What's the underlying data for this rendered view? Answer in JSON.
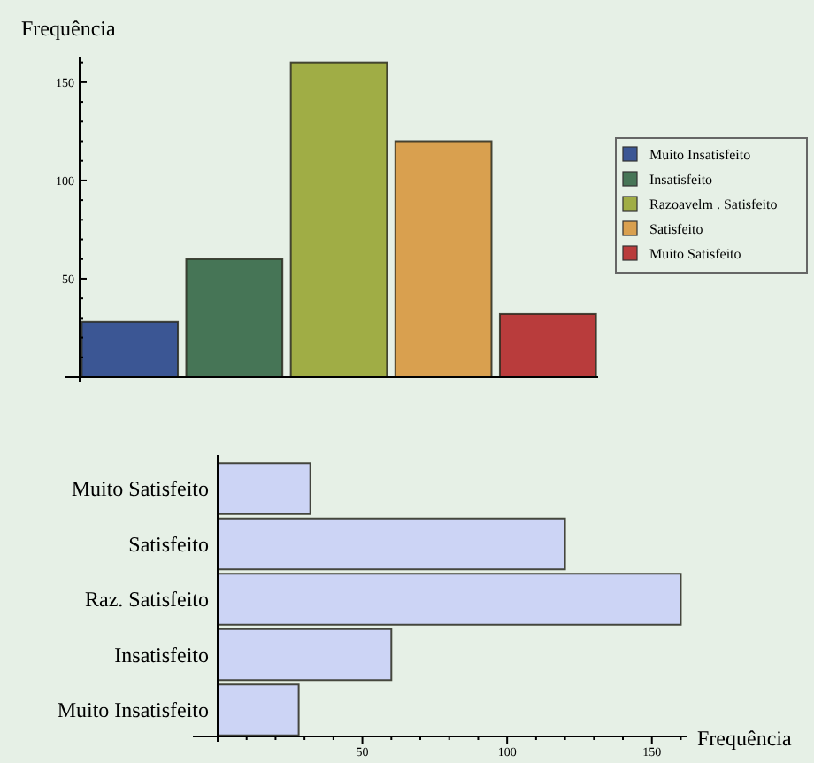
{
  "chart_data": [
    {
      "type": "bar",
      "ylabel": "Frequência",
      "categories": [
        null,
        null,
        null,
        null,
        null
      ],
      "series": [
        {
          "name": "Muito Insatisfeito",
          "color": "#3b5694",
          "values": [
            28,
            null,
            null,
            null,
            null
          ]
        },
        {
          "name": "Insatisfeito",
          "color": "#467556",
          "values": [
            null,
            60,
            null,
            null,
            null
          ]
        },
        {
          "name": "Razoavelm . Satisfeito",
          "color": "#a0ad45",
          "values": [
            null,
            null,
            160,
            null,
            null
          ]
        },
        {
          "name": "Satisfeito",
          "color": "#d9a04f",
          "values": [
            null,
            null,
            null,
            120,
            null
          ]
        },
        {
          "name": "Muito Satisfeito",
          "color": "#b93c3c",
          "values": [
            null,
            null,
            null,
            null,
            32
          ]
        }
      ],
      "ylim": [
        0,
        163
      ],
      "yticks": [
        {
          "value": 10,
          "label": null
        },
        {
          "value": 20,
          "label": null
        },
        {
          "value": 30,
          "label": null
        },
        {
          "value": 40,
          "label": null
        },
        50,
        {
          "value": 60,
          "label": null
        },
        {
          "value": 70,
          "label": null
        },
        {
          "value": 80,
          "label": null
        },
        {
          "value": 90,
          "label": null
        },
        100,
        {
          "value": 110,
          "label": null
        },
        {
          "value": 120,
          "label": null
        },
        {
          "value": 130,
          "label": null
        },
        {
          "value": 140,
          "label": null
        },
        150,
        {
          "value": 160,
          "label": null
        }
      ],
      "legend": "right",
      "grid": false
    },
    {
      "type": "bar",
      "orientation": "horizontal",
      "xlabel": "Frequência",
      "categories": [
        "Muito Satisfeito",
        "Satisfeito",
        "Raz. Satisfeito",
        "Insatisfeito",
        "Muito Insatisfeito"
      ],
      "values": [
        32,
        120,
        160,
        60,
        28
      ],
      "color": "#ccd4f5",
      "xlim": [
        0,
        162
      ],
      "xticks": [
        {
          "value": 10,
          "label": null
        },
        {
          "value": 20,
          "label": null
        },
        {
          "value": 30,
          "label": null
        },
        {
          "value": 40,
          "label": null
        },
        50,
        {
          "value": 60,
          "label": null
        },
        {
          "value": 70,
          "label": null
        },
        {
          "value": 80,
          "label": null
        },
        {
          "value": 90,
          "label": null
        },
        100,
        {
          "value": 110,
          "label": null
        },
        {
          "value": 120,
          "label": null
        },
        {
          "value": 130,
          "label": null
        },
        {
          "value": 140,
          "label": null
        },
        150,
        {
          "value": 160,
          "label": null
        }
      ],
      "legend": false,
      "grid": false
    }
  ]
}
